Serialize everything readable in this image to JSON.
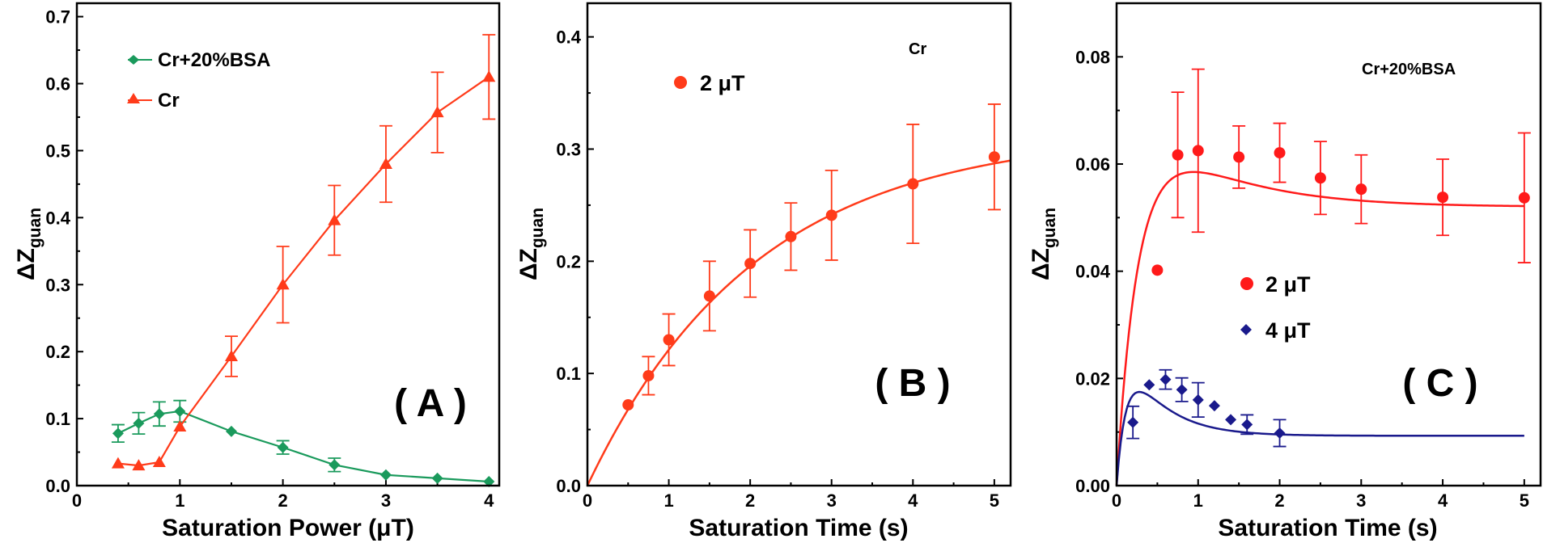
{
  "figure": {
    "panels": [
      "A",
      "B",
      "C"
    ]
  },
  "chart_data": [
    {
      "panel_label": "( A )",
      "type": "line",
      "title": "",
      "xlabel": "Saturation Power (μT)",
      "ylabel": "ΔZ",
      "ylabel_sub": "guan",
      "xlim": [
        0,
        4.1
      ],
      "ylim": [
        0,
        0.72
      ],
      "xticks": [
        0,
        1,
        2,
        3,
        4
      ],
      "xtick_labels": [
        "0",
        "1",
        "2",
        "3",
        "4"
      ],
      "yticks": [
        0,
        0.1,
        0.2,
        0.3,
        0.4,
        0.5,
        0.6,
        0.7
      ],
      "ytick_labels": [
        "0.0",
        "0.1",
        "0.2",
        "0.3",
        "0.4",
        "0.5",
        "0.6",
        "0.7"
      ],
      "legend_position": "top-left",
      "series": [
        {
          "name": "Cr+20%BSA",
          "color": "#1a9a5c",
          "marker": "diamond",
          "x": [
            0.4,
            0.6,
            0.8,
            1.0,
            1.5,
            2.0,
            2.5,
            3.0,
            3.5,
            4.0
          ],
          "y": [
            0.078,
            0.093,
            0.107,
            0.111,
            0.081,
            0.057,
            0.031,
            0.016,
            0.011,
            0.006
          ],
          "err": [
            0.013,
            0.016,
            0.018,
            0.016,
            0.0,
            0.01,
            0.01,
            0.0,
            0.0,
            0.0
          ],
          "connect": "lines"
        },
        {
          "name": "Cr",
          "color": "#ff3b1a",
          "marker": "triangle",
          "x": [
            0.4,
            0.6,
            0.8,
            1.0,
            1.5,
            2.0,
            2.5,
            3.0,
            3.5,
            4.0
          ],
          "y": [
            0.033,
            0.03,
            0.035,
            0.088,
            0.193,
            0.3,
            0.396,
            0.48,
            0.557,
            0.61
          ],
          "err": [
            0.0,
            0.0,
            0.0,
            0.0,
            0.03,
            0.057,
            0.052,
            0.057,
            0.06,
            0.063
          ],
          "connect": "lines"
        }
      ]
    },
    {
      "panel_label": "( B )",
      "type": "scatter",
      "title": "",
      "annotation": "Cr",
      "xlabel": "Saturation Time (s)",
      "ylabel": "ΔZ",
      "ylabel_sub": "guan",
      "xlim": [
        0,
        5.2
      ],
      "ylim": [
        0,
        0.43
      ],
      "xticks": [
        0,
        1,
        2,
        3,
        4,
        5
      ],
      "xtick_labels": [
        "0",
        "1",
        "2",
        "3",
        "4",
        "5"
      ],
      "yticks": [
        0,
        0.1,
        0.2,
        0.3,
        0.4
      ],
      "ytick_labels": [
        "0.0",
        "0.1",
        "0.2",
        "0.3",
        "0.4"
      ],
      "legend_position": "top-left",
      "series": [
        {
          "name": "2 μT",
          "color": "#ff3b1a",
          "marker": "circle",
          "x": [
            0.5,
            0.75,
            1.0,
            1.5,
            2.0,
            2.5,
            3.0,
            4.0,
            5.0
          ],
          "y": [
            0.072,
            0.098,
            0.13,
            0.169,
            0.198,
            0.222,
            0.241,
            0.269,
            0.293
          ],
          "err": [
            0.0,
            0.017,
            0.023,
            0.031,
            0.03,
            0.03,
            0.04,
            0.053,
            0.047
          ],
          "fit": {
            "model": "saturation",
            "A": 0.315,
            "tau": 2.06,
            "xmax": 5.2
          }
        }
      ]
    },
    {
      "panel_label": "( C )",
      "type": "scatter",
      "title": "",
      "annotation": "Cr+20%BSA",
      "xlabel": "Saturation Time (s)",
      "ylabel": "ΔZ",
      "ylabel_sub": "guan",
      "xlim": [
        0,
        5.2
      ],
      "ylim": [
        0,
        0.09
      ],
      "xticks": [
        0,
        1,
        2,
        3,
        4,
        5
      ],
      "xtick_labels": [
        "0",
        "1",
        "2",
        "3",
        "4",
        "5"
      ],
      "yticks": [
        0,
        0.02,
        0.04,
        0.06,
        0.08
      ],
      "ytick_labels": [
        "0.00",
        "0.02",
        "0.04",
        "0.06",
        "0.08"
      ],
      "legend_position": "center",
      "series": [
        {
          "name": "2 μT",
          "color": "#ff1a1a",
          "marker": "circle",
          "x": [
            0.5,
            0.75,
            1.0,
            1.5,
            2.0,
            2.5,
            3.0,
            4.0,
            5.0
          ],
          "y": [
            0.0402,
            0.0617,
            0.0625,
            0.0613,
            0.0621,
            0.0574,
            0.0553,
            0.0538,
            0.0537
          ],
          "err": [
            0.0,
            0.0117,
            0.0152,
            0.0058,
            0.0055,
            0.0068,
            0.0064,
            0.0071,
            0.0121
          ],
          "fit": {
            "model": "rise-decay",
            "C": 0.052,
            "D": 0.0235,
            "tau_r": 0.3,
            "tau_d": 1.0,
            "xmax": 5.0
          }
        },
        {
          "name": "4 μT",
          "color": "#1a1a8c",
          "marker": "diamond",
          "x": [
            0.2,
            0.4,
            0.6,
            0.8,
            1.0,
            1.2,
            1.4,
            1.6,
            2.0
          ],
          "y": [
            0.0118,
            0.0188,
            0.0198,
            0.0179,
            0.016,
            0.0149,
            0.0123,
            0.0114,
            0.0098
          ],
          "err": [
            0.003,
            0.0,
            0.0018,
            0.0022,
            0.0032,
            0.0,
            0.0,
            0.0018,
            0.0025
          ],
          "fit": {
            "model": "rise-decay",
            "C": 0.0093,
            "D": 0.0212,
            "tau_r": 0.15,
            "tau_d": 0.45,
            "xmax": 5.0
          }
        }
      ]
    }
  ]
}
